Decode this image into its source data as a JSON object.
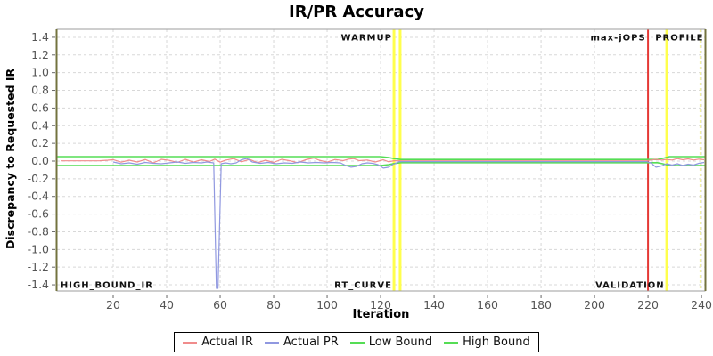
{
  "chart_data": {
    "type": "line",
    "title": "IR/PR Accuracy",
    "xlabel": "Iteration",
    "ylabel": "Discrepancy to Requested IR",
    "xlim": [
      -1,
      241.3
    ],
    "ylim": [
      -1.47,
      1.49
    ],
    "x_ticks": [
      20,
      40,
      60,
      80,
      100,
      120,
      140,
      160,
      180,
      200,
      220,
      240
    ],
    "y_ticks": [
      1.4,
      1.2,
      1.0,
      0.8,
      0.6,
      0.4,
      0.2,
      0.0,
      -0.2,
      -0.4,
      -0.6,
      -0.8,
      -1.0,
      -1.2,
      -1.4
    ],
    "grid": true,
    "grid_style": "dashed",
    "series": [
      {
        "name": "Low Bound",
        "color": "#55dd55",
        "width": 1.6,
        "points": [
          [
            -1,
            -0.05
          ],
          [
            120,
            -0.05
          ],
          [
            123,
            -0.04
          ],
          [
            125,
            -0.028
          ],
          [
            127.5,
            -0.018
          ],
          [
            223.5,
            -0.018
          ],
          [
            225.5,
            -0.03
          ],
          [
            228,
            -0.05
          ],
          [
            241.3,
            -0.05
          ]
        ]
      },
      {
        "name": "High Bound",
        "color": "#55dd55",
        "width": 1.6,
        "points": [
          [
            -1,
            0.05
          ],
          [
            120,
            0.05
          ],
          [
            123,
            0.04
          ],
          [
            125,
            0.028
          ],
          [
            127.5,
            0.018
          ],
          [
            223.5,
            0.018
          ],
          [
            225.5,
            0.03
          ],
          [
            228,
            0.05
          ],
          [
            241.3,
            0.05
          ]
        ]
      },
      {
        "name": "Actual IR",
        "color": "#f08c8c",
        "width": 1.2,
        "points": [
          [
            0.5,
            0.003
          ],
          [
            8,
            0.003
          ],
          [
            15,
            0.004
          ],
          [
            18,
            0.01
          ],
          [
            20,
            0.016
          ],
          [
            23,
            -0.012
          ],
          [
            26,
            0.01
          ],
          [
            29,
            -0.01
          ],
          [
            32,
            0.018
          ],
          [
            35,
            -0.02
          ],
          [
            38,
            0.02
          ],
          [
            41,
            0.008
          ],
          [
            44,
            -0.015
          ],
          [
            47,
            0.02
          ],
          [
            50,
            -0.012
          ],
          [
            53,
            0.015
          ],
          [
            56,
            -0.005
          ],
          [
            58,
            0.022
          ],
          [
            60,
            -0.012
          ],
          [
            62,
            0.01
          ],
          [
            65,
            0.028
          ],
          [
            68,
            -0.008
          ],
          [
            71,
            0.02
          ],
          [
            74,
            -0.018
          ],
          [
            77,
            0.01
          ],
          [
            80,
            -0.015
          ],
          [
            83,
            0.02
          ],
          [
            86,
            0.004
          ],
          [
            89,
            -0.018
          ],
          [
            92,
            0.015
          ],
          [
            95,
            0.035
          ],
          [
            97,
            0.01
          ],
          [
            100,
            -0.012
          ],
          [
            103,
            0.018
          ],
          [
            106,
            0.005
          ],
          [
            108,
            0.022
          ],
          [
            110,
            0.028
          ],
          [
            112,
            0.005
          ],
          [
            115,
            0.012
          ],
          [
            118,
            -0.01
          ],
          [
            121,
            0.015
          ],
          [
            123,
            -0.008
          ],
          [
            125,
            0.004
          ],
          [
            128,
            0.003
          ],
          [
            219.5,
            0.003
          ],
          [
            221,
            0.012
          ],
          [
            223,
            0.02
          ],
          [
            225,
            0.012
          ],
          [
            227,
            0.018
          ],
          [
            229,
            0.012
          ],
          [
            231,
            0.028
          ],
          [
            233,
            0.015
          ],
          [
            235,
            0.025
          ],
          [
            237,
            0.012
          ],
          [
            239,
            0.022
          ],
          [
            241,
            0.015
          ]
        ]
      },
      {
        "name": "Actual PR",
        "color": "#9098e0",
        "width": 1.2,
        "points": [
          [
            20,
            -0.01
          ],
          [
            23,
            -0.03
          ],
          [
            26,
            -0.02
          ],
          [
            29,
            -0.035
          ],
          [
            32,
            -0.015
          ],
          [
            35,
            -0.025
          ],
          [
            38,
            -0.03
          ],
          [
            41,
            -0.02
          ],
          [
            44,
            -0.01
          ],
          [
            47,
            -0.025
          ],
          [
            50,
            -0.015
          ],
          [
            53,
            -0.02
          ],
          [
            55,
            -0.01
          ],
          [
            57.6,
            -0.02
          ],
          [
            58.6,
            -1.44
          ],
          [
            59.2,
            -1.44
          ],
          [
            60.4,
            -0.03
          ],
          [
            62,
            -0.02
          ],
          [
            64,
            -0.03
          ],
          [
            66,
            -0.02
          ],
          [
            68,
            0.015
          ],
          [
            70,
            0.03
          ],
          [
            72,
            -0.01
          ],
          [
            75,
            -0.025
          ],
          [
            78,
            -0.015
          ],
          [
            81,
            -0.03
          ],
          [
            84,
            -0.02
          ],
          [
            87,
            -0.025
          ],
          [
            90,
            -0.01
          ],
          [
            93,
            -0.02
          ],
          [
            96,
            -0.015
          ],
          [
            99,
            -0.02
          ],
          [
            102,
            -0.015
          ],
          [
            105,
            -0.02
          ],
          [
            107,
            -0.05
          ],
          [
            109,
            -0.07
          ],
          [
            111,
            -0.06
          ],
          [
            113,
            -0.03
          ],
          [
            115,
            -0.02
          ],
          [
            117,
            -0.025
          ],
          [
            119,
            -0.04
          ],
          [
            121,
            -0.08
          ],
          [
            123,
            -0.07
          ],
          [
            124.5,
            -0.04
          ],
          [
            127,
            -0.006
          ],
          [
            219.5,
            -0.006
          ],
          [
            221,
            -0.02
          ],
          [
            223,
            -0.07
          ],
          [
            225,
            -0.055
          ],
          [
            227,
            -0.03
          ],
          [
            229,
            -0.045
          ],
          [
            231,
            -0.03
          ],
          [
            233,
            -0.05
          ],
          [
            235,
            -0.035
          ],
          [
            237,
            -0.045
          ],
          [
            239,
            -0.025
          ],
          [
            241,
            -0.015
          ]
        ]
      }
    ],
    "markers": [
      {
        "name": "warmup-line-1",
        "x": 125,
        "color": "#ffff4d",
        "width": 3,
        "dashed": false
      },
      {
        "name": "warmup-line-2",
        "x": 127.3,
        "color": "#ffff4d",
        "width": 3,
        "dashed": false
      },
      {
        "name": "max-jops-line",
        "x": 220,
        "color": "#e53935",
        "width": 2,
        "dashed": false
      },
      {
        "name": "profile-line",
        "x": 227,
        "color": "#ffff4d",
        "width": 3,
        "dashed": false
      },
      {
        "name": "profile-end-line",
        "x": 239.6,
        "color": "#f2f2a0",
        "width": 2,
        "dashed": true
      }
    ],
    "annotations": [
      {
        "label": "WARMUP",
        "x": 124.3,
        "y": 1.4,
        "align": "end"
      },
      {
        "label": "max-jOPS",
        "x": 219.2,
        "y": 1.4,
        "align": "end"
      },
      {
        "label": "PROFILE",
        "x": 240.8,
        "y": 1.4,
        "align": "end"
      },
      {
        "label": "HIGH_BOUND_IR",
        "x": 0.3,
        "y": -1.4,
        "align": "start"
      },
      {
        "label": "RT_CURVE",
        "x": 124.3,
        "y": -1.4,
        "align": "end"
      },
      {
        "label": "VALIDATION",
        "x": 226.2,
        "y": -1.4,
        "align": "end"
      }
    ],
    "colors": {
      "grid": "#d8d8d8",
      "plot_border": "#9e9e9e",
      "axis_accent": "#73733f",
      "tick_text": "#555555",
      "annotation_text": "#111111"
    }
  },
  "legend": {
    "position": "bottom",
    "items": [
      {
        "label": "Actual IR",
        "color": "#f08c8c"
      },
      {
        "label": "Actual PR",
        "color": "#9098e0"
      },
      {
        "label": "Low Bound",
        "color": "#55dd55"
      },
      {
        "label": "High Bound",
        "color": "#55dd55"
      }
    ]
  }
}
